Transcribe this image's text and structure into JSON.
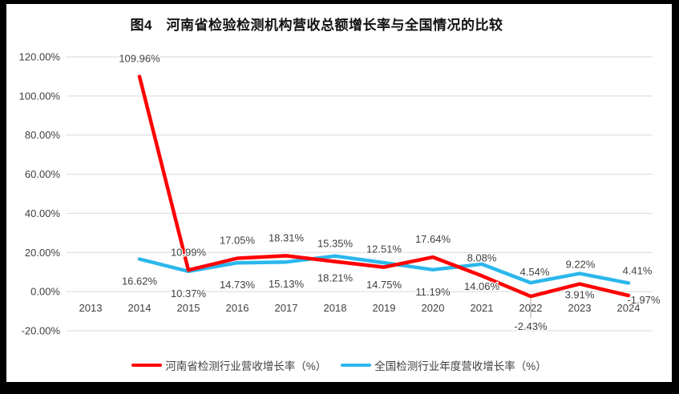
{
  "window": {
    "background": "#000000",
    "plot_background": "#ffffff"
  },
  "colors": {
    "grid": "#d9d9d9",
    "axis_text": "#404040",
    "data_label_text": "#3f3f3f",
    "leader_line": "#a6a6a6",
    "series_red": "#ff0000",
    "series_blue": "#2bb7ec",
    "title_text": "#111111"
  },
  "chart_data": {
    "type": "line",
    "title": "图4　河南省检验检测机构营收总额增长率与全国情况的比较",
    "categories": [
      "2013",
      "2014",
      "2015",
      "2016",
      "2017",
      "2018",
      "2019",
      "2020",
      "2021",
      "2022",
      "2023",
      "2024"
    ],
    "y_ticks": [
      "120.00%",
      "100.00%",
      "80.00%",
      "60.00%",
      "40.00%",
      "20.00%",
      "0.00%",
      "-20.00%"
    ],
    "ylim": [
      -20,
      120
    ],
    "y_step": 20,
    "grid": true,
    "legend_position": "bottom",
    "series": [
      {
        "name": "河南省检测行业营收增长率（%）",
        "color": "#ff0000",
        "values": [
          null,
          109.96,
          10.99,
          17.05,
          18.31,
          15.35,
          12.51,
          17.64,
          8.08,
          -2.43,
          3.91,
          -1.97
        ],
        "labels": [
          "",
          "109.96%",
          "10.99%",
          "17.05%",
          "18.31%",
          "15.35%",
          "12.51%",
          "17.64%",
          "8.08%",
          "-2.43%",
          "3.91%",
          "-1.97%"
        ]
      },
      {
        "name": "全国检测行业年度营收增长率（%）",
        "color": "#2bb7ec",
        "values": [
          null,
          16.62,
          10.37,
          14.73,
          15.13,
          18.21,
          14.75,
          11.19,
          14.06,
          4.54,
          9.22,
          4.41
        ],
        "labels": [
          "",
          "16.62%",
          "10.37%",
          "14.73%",
          "15.13%",
          "18.21%",
          "14.75%",
          "11.19%",
          "14.06%",
          "4.54%",
          "9.22%",
          "4.41%"
        ]
      }
    ]
  }
}
